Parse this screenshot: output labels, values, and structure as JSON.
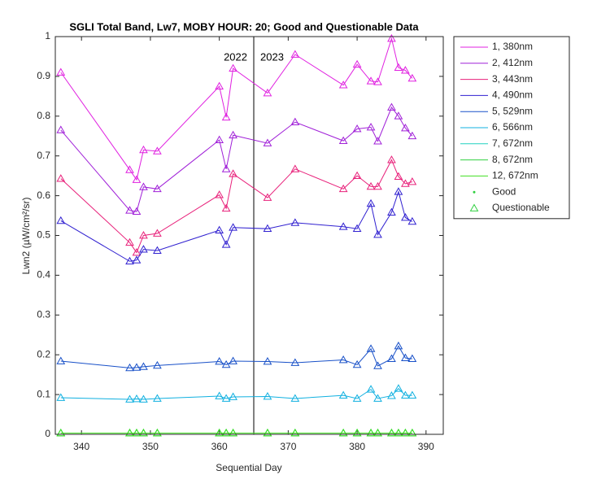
{
  "chart_data": {
    "type": "line",
    "title": "SGLI Total Band, Lw7, MOBY HOUR: 20;  Good and Questionable Data",
    "x_label": "Sequential Day",
    "y_label": "Lwn2 (µW/cm²/sr)",
    "x": [
      337,
      347,
      348,
      349,
      351,
      360,
      361,
      362,
      367,
      371,
      378,
      380,
      382,
      383,
      385,
      386,
      387,
      388
    ],
    "series": [
      {
        "name": "1, 380nm",
        "color": "#e020e0",
        "values": [
          0.91,
          0.665,
          0.64,
          0.715,
          0.712,
          0.875,
          0.797,
          0.92,
          0.858,
          0.955,
          0.878,
          0.93,
          0.888,
          0.886,
          0.995,
          0.922,
          0.915,
          0.895
        ]
      },
      {
        "name": "2, 412nm",
        "color": "#a020d8",
        "values": [
          0.765,
          0.563,
          0.56,
          0.622,
          0.617,
          0.74,
          0.667,
          0.752,
          0.732,
          0.785,
          0.738,
          0.768,
          0.772,
          0.737,
          0.822,
          0.8,
          0.77,
          0.75
        ]
      },
      {
        "name": "3, 443nm",
        "color": "#e8207a",
        "values": [
          0.643,
          0.482,
          0.457,
          0.5,
          0.505,
          0.602,
          0.568,
          0.655,
          0.595,
          0.667,
          0.617,
          0.65,
          0.623,
          0.623,
          0.69,
          0.648,
          0.63,
          0.635
        ]
      },
      {
        "name": "4, 490nm",
        "color": "#3020d0",
        "values": [
          0.537,
          0.435,
          0.438,
          0.465,
          0.462,
          0.513,
          0.477,
          0.52,
          0.517,
          0.532,
          0.522,
          0.517,
          0.58,
          0.502,
          0.558,
          0.61,
          0.545,
          0.535
        ]
      },
      {
        "name": "5, 529nm",
        "color": "#1850c8",
        "values": [
          0.184,
          0.167,
          0.168,
          0.17,
          0.173,
          0.183,
          0.175,
          0.184,
          0.183,
          0.18,
          0.187,
          0.175,
          0.215,
          0.172,
          0.19,
          0.222,
          0.192,
          0.19
        ]
      },
      {
        "name": "6, 566nm",
        "color": "#10b0e0",
        "values": [
          0.092,
          0.088,
          0.089,
          0.088,
          0.09,
          0.096,
          0.09,
          0.094,
          0.095,
          0.09,
          0.098,
          0.09,
          0.113,
          0.09,
          0.097,
          0.115,
          0.098,
          0.098
        ]
      },
      {
        "name": "7, 672nm",
        "color": "#20d0c0",
        "values": [
          0.003,
          0.003,
          0.003,
          0.003,
          0.003,
          0.003,
          0.003,
          0.003,
          0.003,
          0.003,
          0.003,
          0.003,
          0.003,
          0.003,
          0.003,
          0.003,
          0.003,
          0.003
        ]
      },
      {
        "name": "8, 672nm",
        "color": "#30d040",
        "values": [
          0.003,
          0.003,
          0.003,
          0.003,
          0.003,
          0.003,
          0.003,
          0.003,
          0.003,
          0.003,
          0.003,
          0.003,
          0.003,
          0.003,
          0.003,
          0.003,
          0.003,
          0.003
        ]
      },
      {
        "name": "12, 672nm",
        "color": "#40e020",
        "values": [
          0.003,
          0.003,
          0.003,
          0.003,
          0.003,
          0.003,
          0.003,
          0.003,
          0.003,
          0.003,
          0.003,
          0.003,
          0.003,
          0.003,
          0.003,
          0.003,
          0.003,
          0.003
        ]
      }
    ],
    "markers": [
      {
        "name": "Good",
        "color": "#30d040"
      },
      {
        "name": "Questionable",
        "color": "#30d040"
      }
    ],
    "divider_x": 365,
    "annotations": [
      {
        "text": "2022"
      },
      {
        "text": "2023"
      }
    ],
    "xlim": [
      336.2,
      392.5
    ],
    "xticks": [
      340,
      350,
      360,
      370,
      380,
      390
    ],
    "ylim": [
      0,
      1
    ],
    "yticks": [
      0,
      0.1,
      0.2,
      0.3,
      0.4,
      0.5,
      0.6,
      0.7,
      0.8,
      0.9,
      1
    ],
    "legend": "outside-right",
    "grid": false
  }
}
